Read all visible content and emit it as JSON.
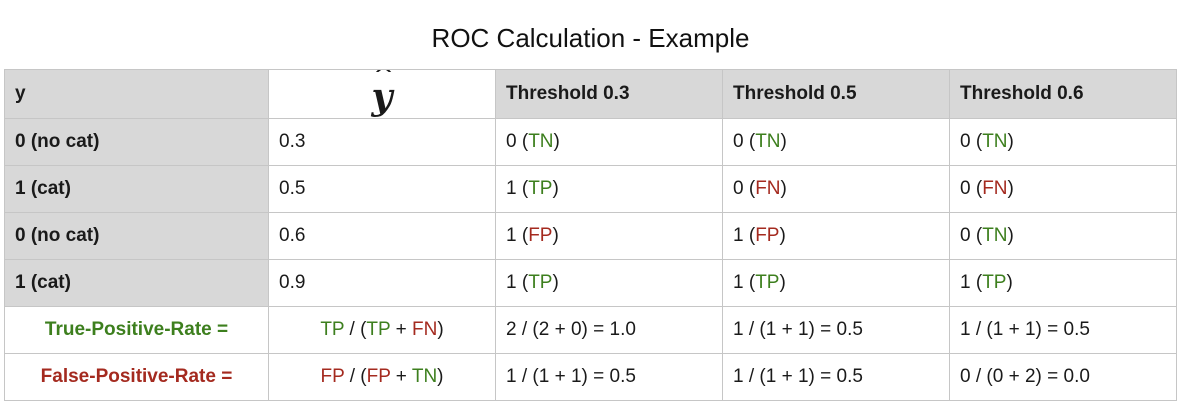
{
  "title": "ROC Calculation - Example",
  "colors": {
    "positive_green": "#3d7f1e",
    "negative_red": "#a42a1f",
    "header_gray": "#d8d8d8",
    "border": "#c6c6c6"
  },
  "table": {
    "headers": {
      "y": "y",
      "yhat": "y",
      "hat": "^",
      "t03": "Threshold 0.3",
      "t05": "Threshold 0.5",
      "t06": "Threshold 0.6"
    },
    "rows": [
      {
        "y": "0 (no cat)",
        "yhat": "0.3",
        "t03": {
          "value": "0",
          "outcome": "TN",
          "paren_open": " (",
          "paren_close": ")"
        },
        "t05": {
          "value": "0",
          "outcome": "TN",
          "paren_open": " (",
          "paren_close": ")"
        },
        "t06": {
          "value": "0",
          "outcome": "TN",
          "paren_open": " (",
          "paren_close": ")"
        }
      },
      {
        "y": "1 (cat)",
        "yhat": "0.5",
        "t03": {
          "value": "1",
          "outcome": "TP",
          "paren_open": " (",
          "paren_close": ")"
        },
        "t05": {
          "value": "0",
          "outcome": "FN",
          "paren_open": " (",
          "paren_close": ")"
        },
        "t06": {
          "value": "0",
          "outcome": "FN",
          "paren_open": " (",
          "paren_close": ")"
        }
      },
      {
        "y": "0 (no cat)",
        "yhat": "0.6",
        "t03": {
          "value": "1",
          "outcome": "FP",
          "paren_open": " (",
          "paren_close": ")"
        },
        "t05": {
          "value": "1",
          "outcome": "FP",
          "paren_open": " (",
          "paren_close": ")"
        },
        "t06": {
          "value": "0",
          "outcome": "TN",
          "paren_open": " (",
          "paren_close": ")"
        }
      },
      {
        "y": "1 (cat)",
        "yhat": "0.9",
        "t03": {
          "value": "1",
          "outcome": "TP",
          "paren_open": " (",
          "paren_close": ")"
        },
        "t05": {
          "value": "1",
          "outcome": "TP",
          "paren_open": " (",
          "paren_close": ")"
        },
        "t06": {
          "value": "1",
          "outcome": "TP",
          "paren_open": " (",
          "paren_close": ")"
        }
      }
    ],
    "tpr": {
      "label": "True-Positive-Rate =",
      "formula": {
        "num": "TP",
        "sep": " / (",
        "a": "TP",
        "plus": " + ",
        "b": "FN",
        "close": ")"
      },
      "t03": "2 / (2 + 0) = 1.0",
      "t05": "1 / (1 + 1) = 0.5",
      "t06": "1 / (1 + 1) = 0.5"
    },
    "fpr": {
      "label": "False-Positive-Rate =",
      "formula": {
        "num": "FP",
        "sep": " / (",
        "a": "FP",
        "plus": " + ",
        "b": "TN",
        "close": ")"
      },
      "t03": "1 / (1 + 1) = 0.5",
      "t05": "1 / (1 + 1) = 0.5",
      "t06": "0 / (0 + 2) = 0.0"
    }
  }
}
